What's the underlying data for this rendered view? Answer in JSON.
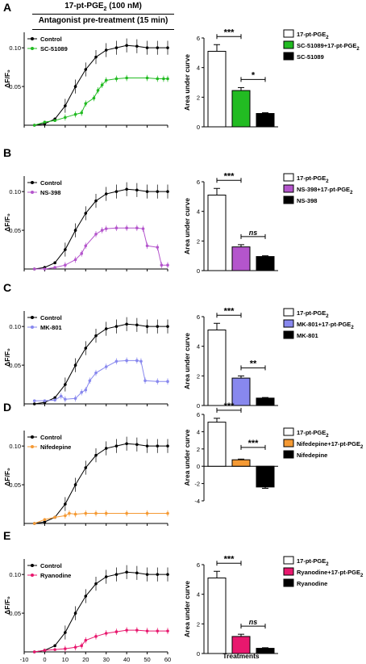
{
  "header": {
    "treatment": "17-pt-PGE₂ (100 nM)",
    "pretreatment": "Antagonist pre-treatment (15 min)"
  },
  "axes": {
    "trace_ylabel": "ΔF/F₀",
    "trace_xlabel": "Time (s)",
    "bar_ylabel": "Area under curve",
    "bar_xlabel": "Treatments",
    "trace_x_ticks": [
      "-10",
      "0",
      "10",
      "20",
      "30",
      "40",
      "50",
      "60"
    ],
    "trace_y_ticks": [
      "0.05",
      "0.10"
    ]
  },
  "colors": {
    "control": "#000000",
    "A": "#22bb22",
    "B": "#b455cc",
    "C": "#8888ee",
    "D": "#f59a34",
    "E": "#e8186e"
  },
  "chart_data": [
    {
      "panel": "A",
      "type": "line",
      "xlim": [
        -10,
        60
      ],
      "ylim": [
        0,
        0.12
      ],
      "series": [
        {
          "name": "Control",
          "points": [
            [
              -5,
              0.0
            ],
            [
              0,
              0.002
            ],
            [
              5,
              0.008
            ],
            [
              10,
              0.025
            ],
            [
              15,
              0.05
            ],
            [
              20,
              0.072
            ],
            [
              25,
              0.088
            ],
            [
              30,
              0.097
            ],
            [
              35,
              0.1
            ],
            [
              40,
              0.103
            ],
            [
              45,
              0.102
            ],
            [
              50,
              0.1
            ],
            [
              55,
              0.1
            ],
            [
              60,
              0.1
            ]
          ]
        },
        {
          "name": "SC-51089",
          "points": [
            [
              -5,
              0.0
            ],
            [
              0,
              0.004
            ],
            [
              5,
              0.006
            ],
            [
              10,
              0.01
            ],
            [
              15,
              0.014
            ],
            [
              18,
              0.016
            ],
            [
              20,
              0.028
            ],
            [
              24,
              0.035
            ],
            [
              26,
              0.045
            ],
            [
              28,
              0.052
            ],
            [
              30,
              0.058
            ],
            [
              35,
              0.06
            ],
            [
              40,
              0.061
            ],
            [
              50,
              0.061
            ],
            [
              55,
              0.06
            ],
            [
              58,
              0.06
            ],
            [
              60,
              0.06
            ]
          ]
        }
      ]
    },
    {
      "panel": "A",
      "type": "bar",
      "categories": [
        "17-pt-PGE₂",
        "SC-51089+17-pt-PGE₂",
        "SC-51089"
      ],
      "values": [
        5.1,
        2.45,
        0.9
      ],
      "errors": [
        0.45,
        0.2,
        0.05
      ],
      "ylim": [
        0,
        6
      ],
      "yticks": [
        "0",
        "2",
        "4",
        "6"
      ],
      "significance": [
        {
          "between": [
            0,
            1
          ],
          "label": "***"
        },
        {
          "between": [
            1,
            2
          ],
          "label": "*"
        }
      ]
    },
    {
      "panel": "B",
      "type": "line",
      "xlim": [
        -10,
        60
      ],
      "ylim": [
        0,
        0.12
      ],
      "series": [
        {
          "name": "Control",
          "points": [
            [
              -5,
              0.0
            ],
            [
              0,
              0.002
            ],
            [
              5,
              0.008
            ],
            [
              10,
              0.025
            ],
            [
              15,
              0.05
            ],
            [
              20,
              0.072
            ],
            [
              25,
              0.088
            ],
            [
              30,
              0.097
            ],
            [
              35,
              0.1
            ],
            [
              40,
              0.103
            ],
            [
              45,
              0.102
            ],
            [
              50,
              0.1
            ],
            [
              55,
              0.1
            ],
            [
              60,
              0.1
            ]
          ]
        },
        {
          "name": "NS-398",
          "points": [
            [
              -5,
              0.0
            ],
            [
              0,
              0.0
            ],
            [
              5,
              0.002
            ],
            [
              10,
              0.005
            ],
            [
              15,
              0.012
            ],
            [
              18,
              0.02
            ],
            [
              20,
              0.03
            ],
            [
              25,
              0.045
            ],
            [
              28,
              0.05
            ],
            [
              30,
              0.052
            ],
            [
              35,
              0.053
            ],
            [
              40,
              0.053
            ],
            [
              45,
              0.053
            ],
            [
              48,
              0.052
            ],
            [
              50,
              0.03
            ],
            [
              55,
              0.028
            ],
            [
              57,
              0.005
            ],
            [
              60,
              0.005
            ]
          ]
        }
      ]
    },
    {
      "panel": "B",
      "type": "bar",
      "categories": [
        "17-pt-PGE₂",
        "NS-398+17-pt-PGE₂",
        "NS-398"
      ],
      "values": [
        5.1,
        1.6,
        0.95
      ],
      "errors": [
        0.45,
        0.15,
        0.05
      ],
      "ylim": [
        0,
        6
      ],
      "yticks": [
        "0",
        "2",
        "4",
        "6"
      ],
      "significance": [
        {
          "between": [
            0,
            1
          ],
          "label": "***"
        },
        {
          "between": [
            1,
            2
          ],
          "label": "ns"
        }
      ]
    },
    {
      "panel": "C",
      "type": "line",
      "xlim": [
        -10,
        60
      ],
      "ylim": [
        0,
        0.12
      ],
      "series": [
        {
          "name": "Control",
          "points": [
            [
              -5,
              0.0
            ],
            [
              0,
              0.002
            ],
            [
              5,
              0.008
            ],
            [
              10,
              0.025
            ],
            [
              15,
              0.05
            ],
            [
              20,
              0.072
            ],
            [
              25,
              0.088
            ],
            [
              30,
              0.097
            ],
            [
              35,
              0.1
            ],
            [
              40,
              0.103
            ],
            [
              45,
              0.102
            ],
            [
              50,
              0.1
            ],
            [
              55,
              0.1
            ],
            [
              60,
              0.1
            ]
          ]
        },
        {
          "name": "MK-801",
          "points": [
            [
              -5,
              0.004
            ],
            [
              0,
              0.004
            ],
            [
              5,
              0.005
            ],
            [
              8,
              0.01
            ],
            [
              10,
              0.006
            ],
            [
              15,
              0.007
            ],
            [
              18,
              0.015
            ],
            [
              20,
              0.018
            ],
            [
              22,
              0.03
            ],
            [
              25,
              0.04
            ],
            [
              30,
              0.048
            ],
            [
              35,
              0.055
            ],
            [
              40,
              0.056
            ],
            [
              45,
              0.056
            ],
            [
              47,
              0.055
            ],
            [
              49,
              0.03
            ],
            [
              55,
              0.029
            ],
            [
              60,
              0.029
            ]
          ]
        }
      ]
    },
    {
      "panel": "C",
      "type": "bar",
      "categories": [
        "17-pt-PGE₂",
        "MK-801+17-pt-PGE₂",
        "MK-801"
      ],
      "values": [
        5.1,
        1.85,
        0.5
      ],
      "errors": [
        0.45,
        0.15,
        0.04
      ],
      "ylim": [
        0,
        6
      ],
      "yticks": [
        "0",
        "2",
        "4",
        "6"
      ],
      "significance": [
        {
          "between": [
            0,
            1
          ],
          "label": "***"
        },
        {
          "between": [
            1,
            2
          ],
          "label": "**"
        }
      ]
    },
    {
      "panel": "D",
      "type": "line",
      "xlim": [
        -10,
        60
      ],
      "ylim": [
        0,
        0.12
      ],
      "series": [
        {
          "name": "Control",
          "points": [
            [
              -5,
              0.0
            ],
            [
              0,
              0.002
            ],
            [
              5,
              0.008
            ],
            [
              10,
              0.025
            ],
            [
              15,
              0.05
            ],
            [
              20,
              0.072
            ],
            [
              25,
              0.088
            ],
            [
              30,
              0.097
            ],
            [
              35,
              0.1
            ],
            [
              40,
              0.103
            ],
            [
              45,
              0.102
            ],
            [
              50,
              0.1
            ],
            [
              55,
              0.1
            ],
            [
              60,
              0.1
            ]
          ]
        },
        {
          "name": "Nifedepine",
          "points": [
            [
              -5,
              0.0
            ],
            [
              0,
              0.005
            ],
            [
              5,
              0.008
            ],
            [
              10,
              0.01
            ],
            [
              12,
              0.013
            ],
            [
              15,
              0.012
            ],
            [
              20,
              0.013
            ],
            [
              25,
              0.013
            ],
            [
              30,
              0.013
            ],
            [
              40,
              0.013
            ],
            [
              50,
              0.013
            ],
            [
              60,
              0.013
            ]
          ]
        }
      ]
    },
    {
      "panel": "D",
      "type": "bar",
      "categories": [
        "17-pt-PGE₂",
        "Nifedepine+17-pt-PGE₂",
        "Nifedepine"
      ],
      "values": [
        5.1,
        0.75,
        -2.4
      ],
      "errors": [
        0.45,
        0.08,
        0.15
      ],
      "ylim": [
        -4,
        6
      ],
      "yticks": [
        "-4",
        "-2",
        "0",
        "2",
        "4",
        "6"
      ],
      "significance": [
        {
          "between": [
            0,
            1
          ],
          "label": "***"
        },
        {
          "between": [
            1,
            2
          ],
          "label": "***"
        }
      ]
    },
    {
      "panel": "E",
      "type": "line",
      "xlim": [
        -10,
        60
      ],
      "ylim": [
        0,
        0.12
      ],
      "series": [
        {
          "name": "Control",
          "points": [
            [
              -5,
              0.0
            ],
            [
              0,
              0.002
            ],
            [
              5,
              0.008
            ],
            [
              10,
              0.025
            ],
            [
              15,
              0.05
            ],
            [
              20,
              0.072
            ],
            [
              25,
              0.088
            ],
            [
              30,
              0.097
            ],
            [
              35,
              0.1
            ],
            [
              40,
              0.103
            ],
            [
              45,
              0.102
            ],
            [
              50,
              0.1
            ],
            [
              55,
              0.1
            ],
            [
              60,
              0.1
            ]
          ]
        },
        {
          "name": "Ryanodine",
          "points": [
            [
              -5,
              0.0
            ],
            [
              0,
              0.002
            ],
            [
              5,
              0.003
            ],
            [
              10,
              0.004
            ],
            [
              15,
              0.006
            ],
            [
              18,
              0.008
            ],
            [
              20,
              0.015
            ],
            [
              25,
              0.02
            ],
            [
              30,
              0.024
            ],
            [
              35,
              0.026
            ],
            [
              40,
              0.028
            ],
            [
              45,
              0.028
            ],
            [
              50,
              0.027
            ],
            [
              55,
              0.027
            ],
            [
              60,
              0.027
            ]
          ]
        }
      ]
    },
    {
      "panel": "E",
      "type": "bar",
      "categories": [
        "17-pt-PGE₂",
        "Ryanodine+17-pt-PGE₂",
        "Ryanodine"
      ],
      "values": [
        5.1,
        1.15,
        0.35
      ],
      "errors": [
        0.45,
        0.15,
        0.04
      ],
      "ylim": [
        0,
        6
      ],
      "yticks": [
        "0",
        "2",
        "4",
        "6"
      ],
      "significance": [
        {
          "between": [
            0,
            1
          ],
          "label": "***"
        },
        {
          "between": [
            1,
            2
          ],
          "label": "ns"
        }
      ]
    }
  ]
}
